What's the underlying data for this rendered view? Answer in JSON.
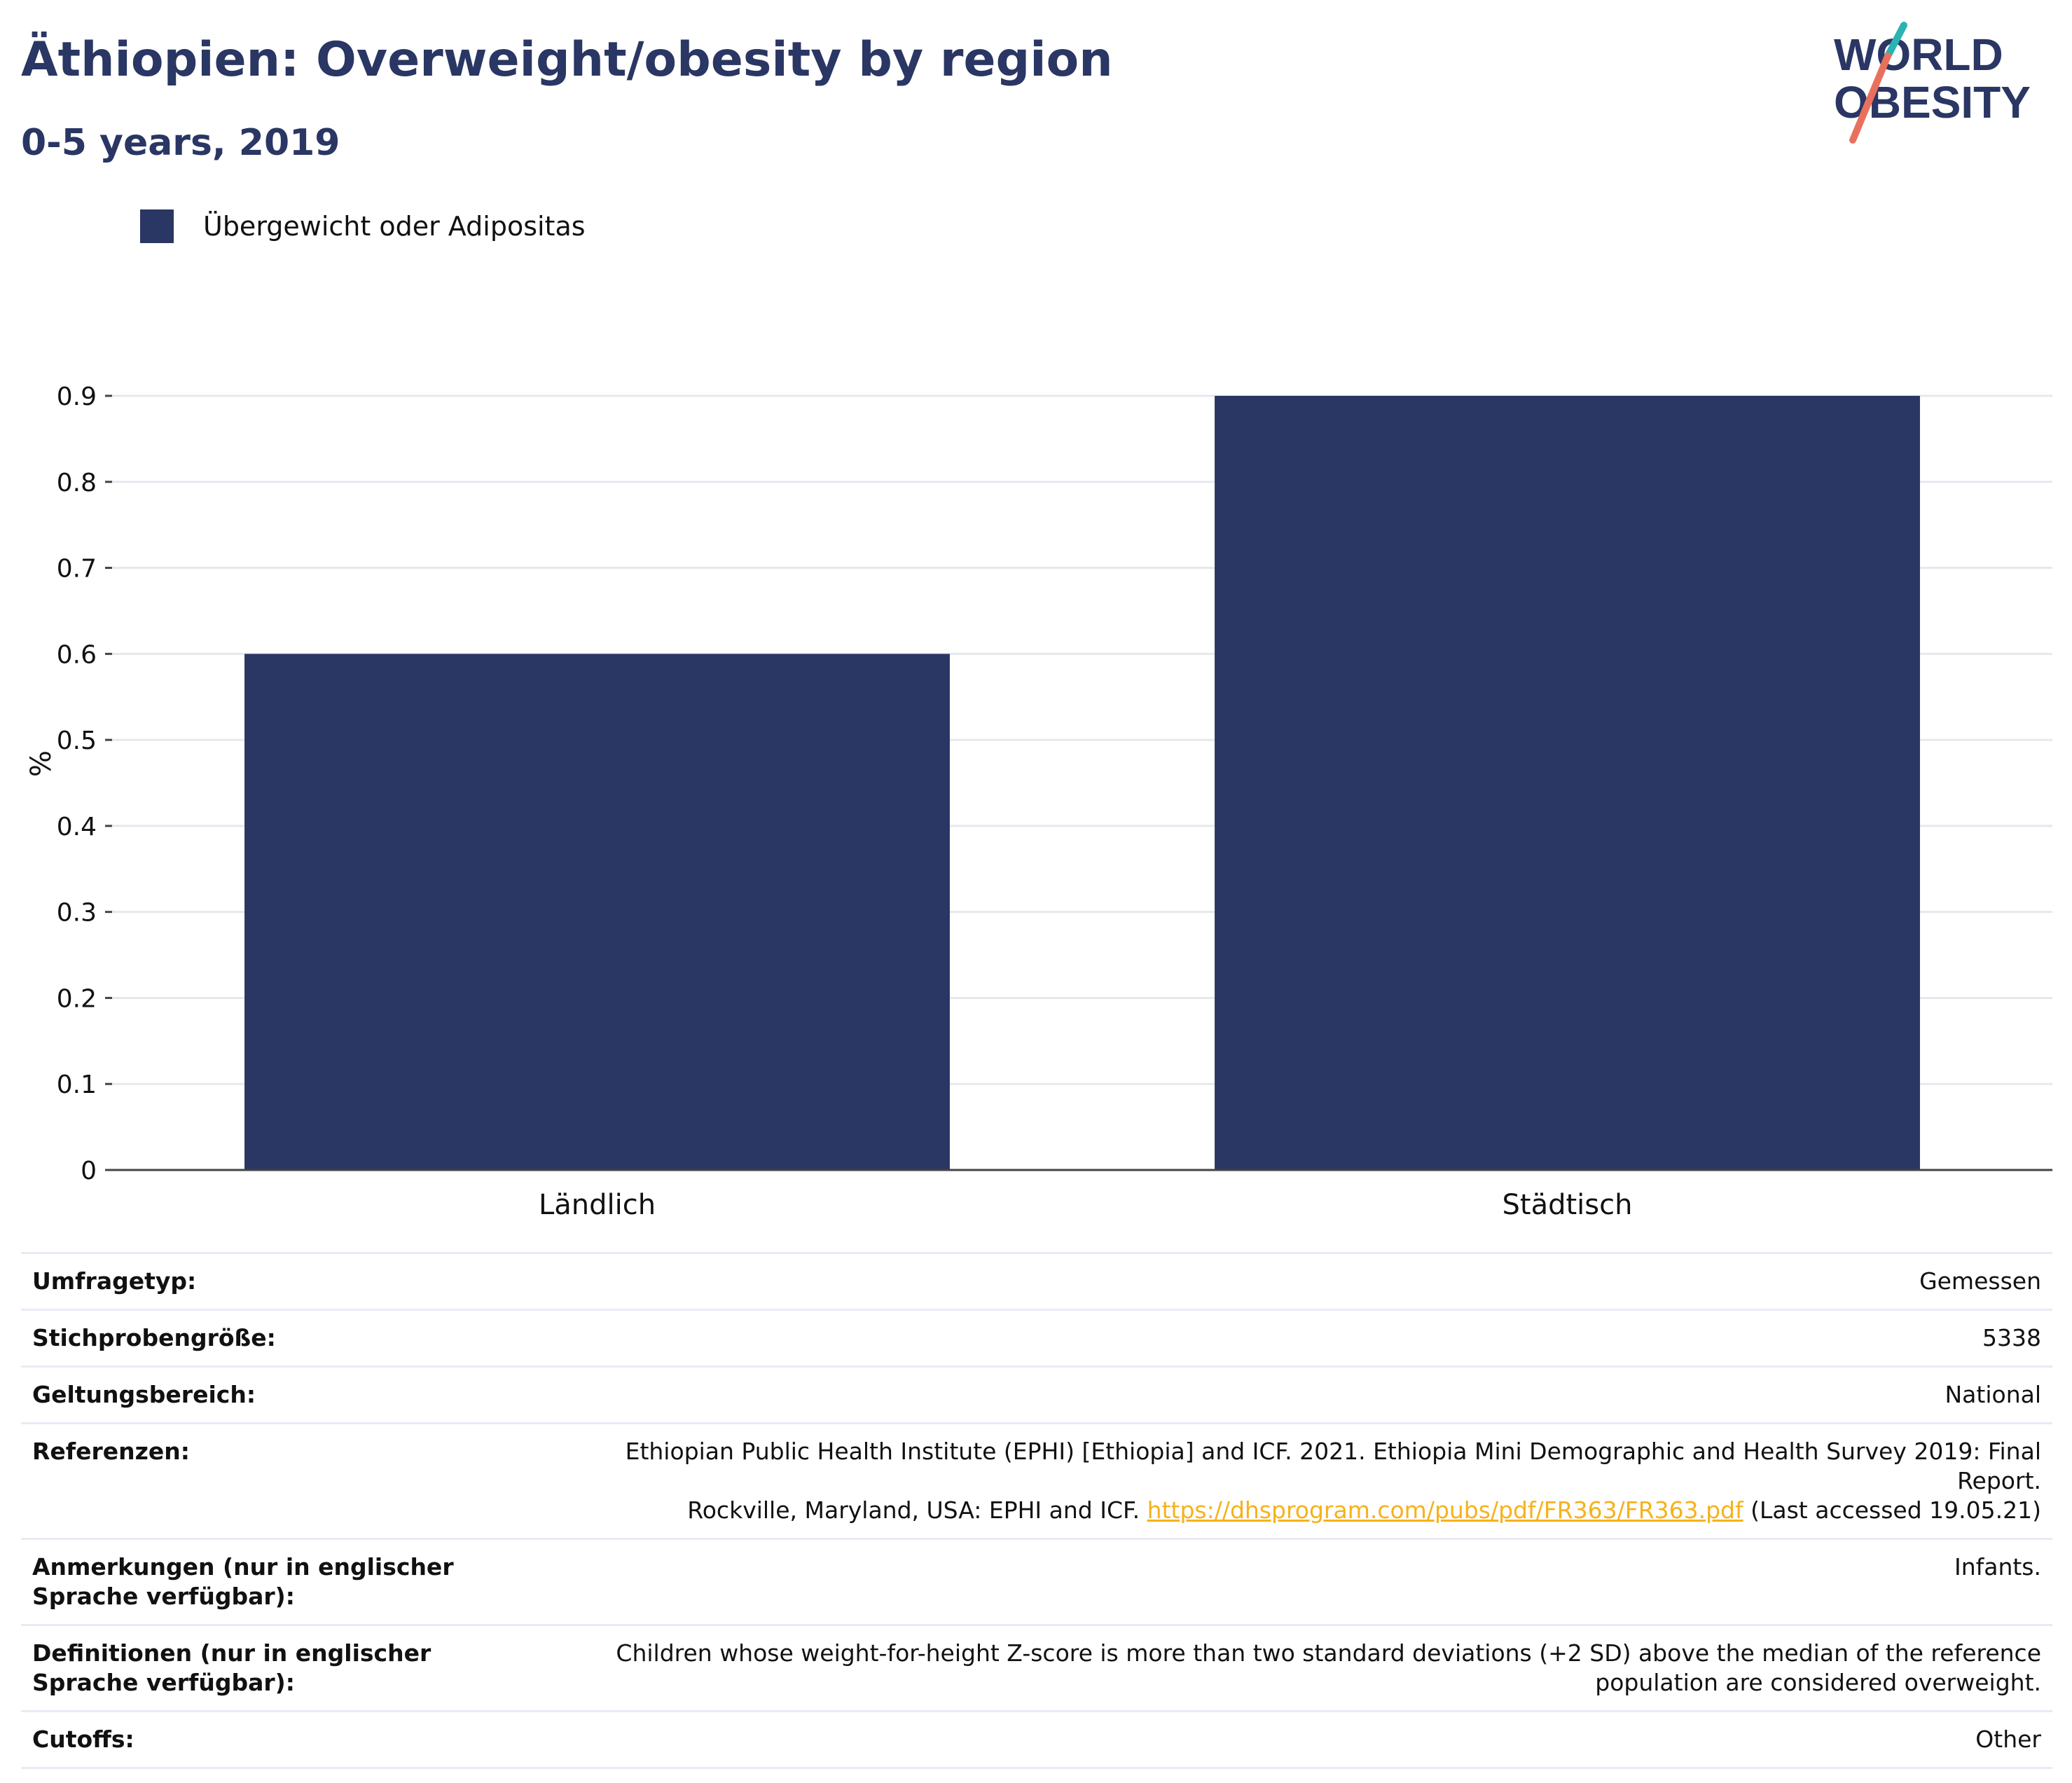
{
  "header": {
    "title": "Äthiopien: Overweight/obesity by region",
    "subtitle": "0-5 years, 2019"
  },
  "logo": {
    "line1": "WORLD",
    "line2": "OBESITY"
  },
  "legend": {
    "label": "Übergewicht oder Adipositas",
    "color": "#2a3663"
  },
  "chart_data": {
    "type": "bar",
    "categories": [
      "Ländlich",
      "Städtisch"
    ],
    "series": [
      {
        "name": "Übergewicht oder Adipositas",
        "values": [
          0.6,
          0.9
        ]
      }
    ],
    "ylabel": "%",
    "ylim": [
      0,
      0.9
    ],
    "yticks": [
      "0",
      "0.1",
      "0.2",
      "0.3",
      "0.4",
      "0.5",
      "0.6",
      "0.7",
      "0.8",
      "0.9"
    ],
    "grid": true,
    "legend_position": "top-left",
    "bar_color": "#2a3663"
  },
  "info": {
    "survey_type": {
      "label": "Umfragetyp:",
      "value": "Gemessen"
    },
    "sample_size": {
      "label": "Stichprobengröße:",
      "value": "5338"
    },
    "scope": {
      "label": "Geltungsbereich:",
      "value": "National"
    },
    "references": {
      "label": "Referenzen:",
      "text1": "Ethiopian Public Health Institute (EPHI) [Ethiopia] and ICF. 2021. Ethiopia Mini Demographic and Health Survey 2019: Final Report.",
      "text2": "Rockville, Maryland, USA: EPHI and ICF.",
      "link": "https://dhsprogram.com/pubs/pdf/FR363/FR363.pdf",
      "text3": "(Last accessed 19.05.21)"
    },
    "notes": {
      "label": "Anmerkungen (nur in englischer Sprache verfügbar):",
      "value": "Infants."
    },
    "definitions": {
      "label": "Definitionen (nur in englischer Sprache verfügbar):",
      "value": "Children whose weight-for-height Z-score is more than two standard deviations (+2 SD) above the median of the reference population are considered overweight."
    },
    "cutoffs": {
      "label": "Cutoffs:",
      "value": "Other"
    }
  }
}
